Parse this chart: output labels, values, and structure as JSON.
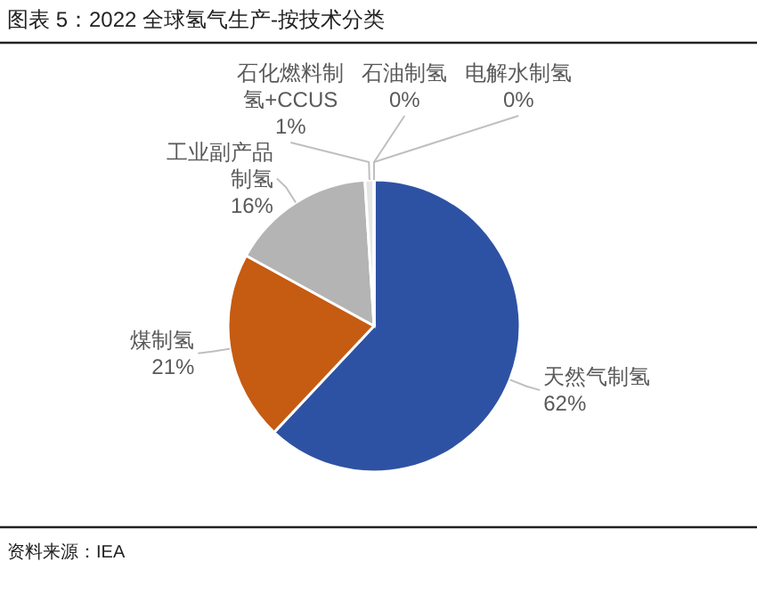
{
  "chart_data": {
    "type": "pie",
    "title": "图表 5：2022 全球氢气生产-按技术分类",
    "categories": [
      "天然气制氢",
      "煤制氢",
      "工业副产品制氢",
      "石化燃料制氢+CCUS",
      "石油制氢",
      "电解水制氢"
    ],
    "values": [
      62,
      21,
      16,
      1,
      0,
      0
    ],
    "value_labels": [
      "62%",
      "21%",
      "16%",
      "1%",
      "0%",
      "0%"
    ],
    "colors": [
      "#2e52a3",
      "#c65b12",
      "#b4b4b4",
      "#e6e6e6",
      "#d9d9d9",
      "#d0d0d0"
    ],
    "annotations": [
      "资料来源：IEA"
    ]
  }
}
